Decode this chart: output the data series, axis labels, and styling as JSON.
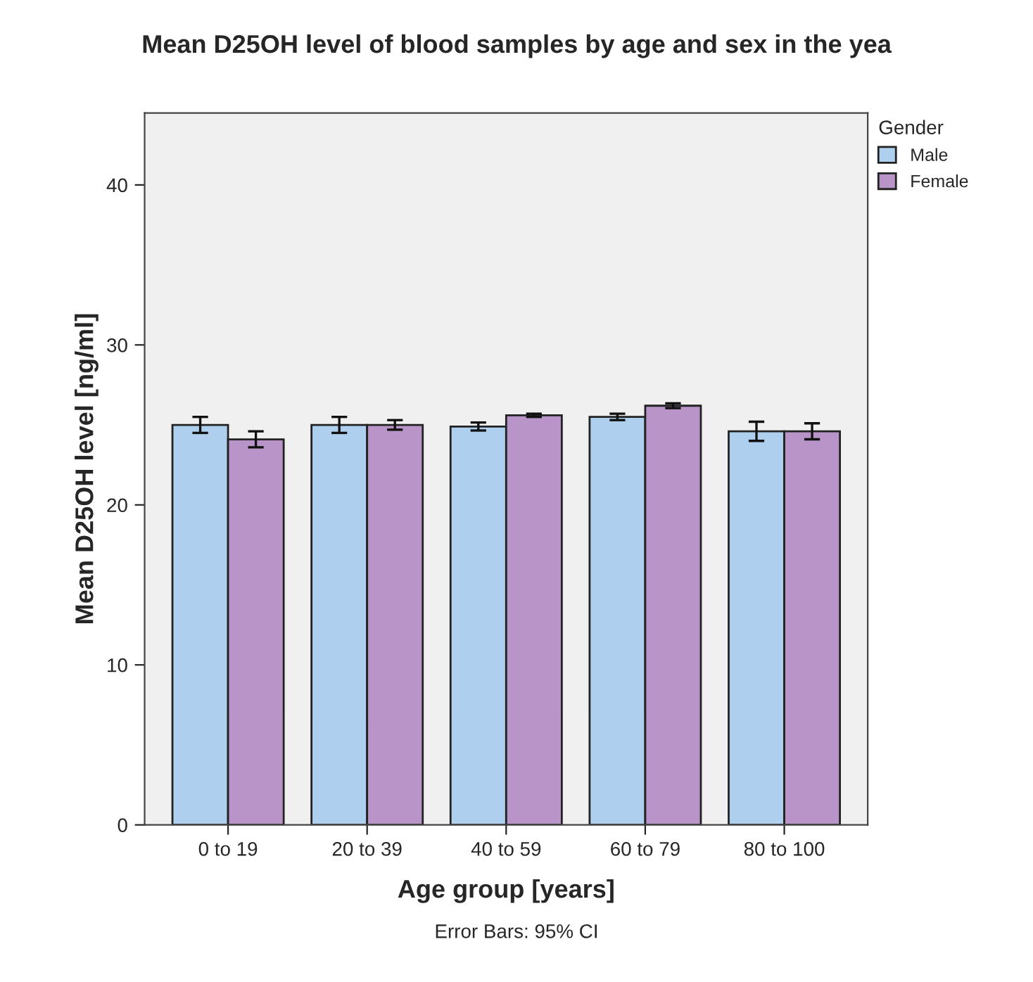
{
  "chart_data": {
    "type": "bar",
    "title": "Mean D25OH level of blood samples by age and sex in the yea",
    "xlabel": "Age group [years]",
    "ylabel": "Mean D25OH level [ng/ml]",
    "legend_title": "Gender",
    "categories": [
      "0 to 19",
      "20 to 39",
      "40 to 59",
      "60 to 79",
      "80 to 100"
    ],
    "series": [
      {
        "name": "Male",
        "color": "#aed0ee",
        "values": [
          25.0,
          25.0,
          24.9,
          25.5,
          24.6
        ],
        "errors": [
          0.5,
          0.5,
          0.25,
          0.2,
          0.6
        ]
      },
      {
        "name": "Female",
        "color": "#b894c8",
        "values": [
          24.1,
          25.0,
          25.6,
          26.2,
          24.6
        ],
        "errors": [
          0.5,
          0.3,
          0.1,
          0.15,
          0.5
        ]
      }
    ],
    "ylim": [
      0,
      44.5
    ],
    "yticks": [
      0,
      10,
      20,
      30,
      40
    ],
    "grid": false,
    "legend": "right",
    "annotations": [
      "Error Bars: 95% CI"
    ]
  }
}
